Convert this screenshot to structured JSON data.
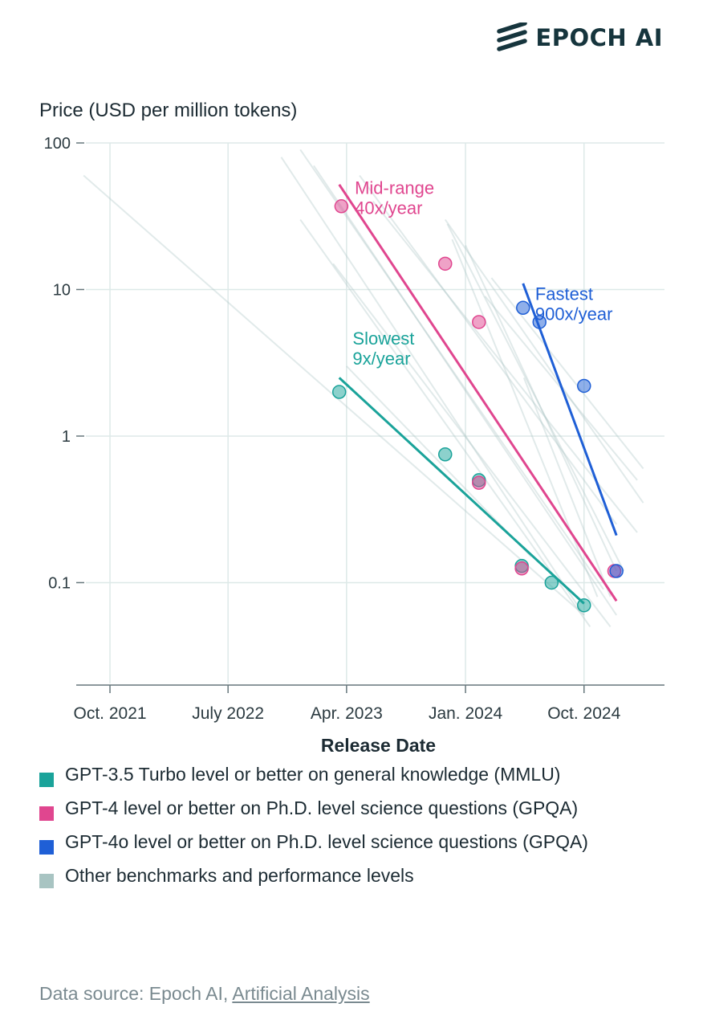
{
  "brand": {
    "name": "EPOCH AI",
    "logo_icon": "epoch-stripes-icon"
  },
  "chart_data": {
    "type": "scatter",
    "title": "",
    "ylabel": "Price (USD per million tokens)",
    "xlabel": "Release Date",
    "y_scale": "log",
    "ylim": [
      0.02,
      100
    ],
    "xlim": [
      "2021-07-15",
      "2025-04-05"
    ],
    "y_ticks": [
      {
        "value": 100,
        "label": "100"
      },
      {
        "value": 10,
        "label": "10"
      },
      {
        "value": 1,
        "label": "1"
      },
      {
        "value": 0.1,
        "label": "0.1"
      }
    ],
    "x_ticks": [
      {
        "date": "2021-10-01",
        "label": "Oct. 2021"
      },
      {
        "date": "2022-07-01",
        "label": "July 2022"
      },
      {
        "date": "2023-04-01",
        "label": "Apr. 2023"
      },
      {
        "date": "2024-01-01",
        "label": "Jan. 2024"
      },
      {
        "date": "2024-10-01",
        "label": "Oct. 2024"
      }
    ],
    "grid": true,
    "legend_placement": "bottom",
    "series": [
      {
        "name": "GPT-3.5 Turbo level or better on general knowledge (MMLU)",
        "color": "#1aa39a",
        "points": [
          {
            "x": "2023-03-15",
            "y": 2.0
          },
          {
            "x": "2023-11-15",
            "y": 0.75
          },
          {
            "x": "2024-02-01",
            "y": 0.5
          },
          {
            "x": "2024-05-10",
            "y": 0.13
          },
          {
            "x": "2024-07-18",
            "y": 0.1
          },
          {
            "x": "2024-10-01",
            "y": 0.07
          }
        ],
        "trend": {
          "x": [
            "2023-03-15",
            "2024-10-01"
          ],
          "y": [
            2.5,
            0.072
          ]
        },
        "annotation": {
          "lines": [
            "Slowest",
            "9x/year"
          ],
          "x": "2023-04-15",
          "y": 4.2
        }
      },
      {
        "name": "GPT-4 level or better on Ph.D. level science questions (GPQA)",
        "color": "#e0468f",
        "points": [
          {
            "x": "2023-03-20",
            "y": 37
          },
          {
            "x": "2023-11-15",
            "y": 15
          },
          {
            "x": "2024-02-01",
            "y": 6
          },
          {
            "x": "2024-02-01",
            "y": 0.48
          },
          {
            "x": "2024-05-10",
            "y": 0.125
          },
          {
            "x": "2024-12-10",
            "y": 0.12
          }
        ],
        "trend": {
          "x": [
            "2023-03-15",
            "2024-12-15"
          ],
          "y": [
            52,
            0.075
          ]
        },
        "annotation": {
          "lines": [
            "Mid-range",
            "40x/year"
          ],
          "x": "2023-04-20",
          "y": 45
        }
      },
      {
        "name": "GPT-4o level or better on Ph.D. level science questions (GPQA)",
        "color": "#1f5fd6",
        "points": [
          {
            "x": "2024-05-13",
            "y": 7.5
          },
          {
            "x": "2024-06-20",
            "y": 6
          },
          {
            "x": "2024-10-01",
            "y": 2.2
          },
          {
            "x": "2024-12-15",
            "y": 0.12
          }
        ],
        "trend": {
          "x": [
            "2024-05-13",
            "2024-12-15"
          ],
          "y": [
            11,
            0.21
          ]
        },
        "annotation": {
          "lines": [
            "Fastest",
            "900x/year"
          ],
          "x": "2024-06-10",
          "y": 8.5
        }
      },
      {
        "name": "Other benchmarks and performance levels",
        "color": "#a8c4c2",
        "points": [],
        "trend_lines": [
          {
            "x": [
              "2021-08-01",
              "2024-10-01"
            ],
            "y": [
              60,
              0.06
            ]
          },
          {
            "x": [
              "2022-11-01",
              "2024-10-01"
            ],
            "y": [
              80,
              0.06
            ]
          },
          {
            "x": [
              "2022-12-15",
              "2024-10-15"
            ],
            "y": [
              30,
              0.05
            ]
          },
          {
            "x": [
              "2022-12-15",
              "2024-11-15"
            ],
            "y": [
              90,
              0.09
            ]
          },
          {
            "x": [
              "2023-01-15",
              "2024-12-15"
            ],
            "y": [
              70,
              0.06
            ]
          },
          {
            "x": [
              "2023-03-01",
              "2024-12-01"
            ],
            "y": [
              15,
              0.05
            ]
          },
          {
            "x": [
              "2023-05-01",
              "2024-12-15"
            ],
            "y": [
              60,
              0.25
            ]
          },
          {
            "x": [
              "2023-06-01",
              "2025-02-01"
            ],
            "y": [
              40,
              0.22
            ]
          },
          {
            "x": [
              "2023-11-15",
              "2025-02-15"
            ],
            "y": [
              30,
              0.35
            ]
          },
          {
            "x": [
              "2023-11-20",
              "2025-01-01"
            ],
            "y": [
              28,
              0.12
            ]
          },
          {
            "x": [
              "2023-12-01",
              "2024-11-01"
            ],
            "y": [
              22,
              0.08
            ]
          },
          {
            "x": [
              "2024-01-01",
              "2024-12-15"
            ],
            "y": [
              20,
              0.12
            ]
          },
          {
            "x": [
              "2024-02-15",
              "2025-02-01"
            ],
            "y": [
              9,
              0.5
            ]
          },
          {
            "x": [
              "2024-05-15",
              "2024-12-01"
            ],
            "y": [
              2.5,
              0.08
            ]
          },
          {
            "x": [
              "2023-04-01",
              "2024-06-01"
            ],
            "y": [
              3,
              0.15
            ]
          },
          {
            "x": [
              "2024-03-01",
              "2025-02-15"
            ],
            "y": [
              12,
              0.6
            ]
          }
        ]
      }
    ]
  },
  "source": {
    "prefix": "Data source: Epoch AI, ",
    "link_text": "Artificial Analysis"
  }
}
